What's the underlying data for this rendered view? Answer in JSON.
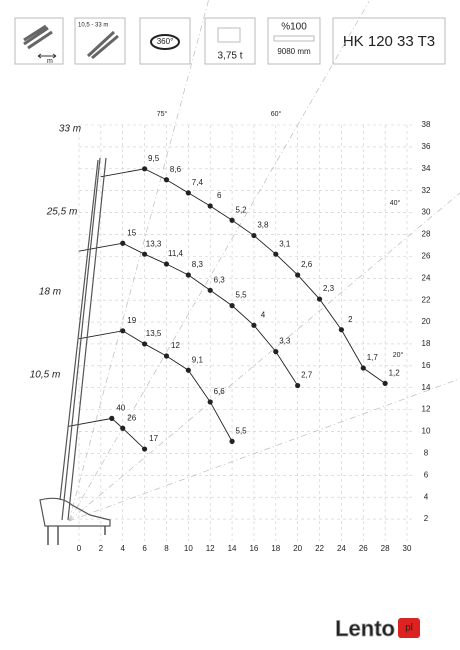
{
  "header": {
    "icons": [
      "m",
      "10,5 - 33 m",
      "360°",
      "3,75 t",
      "%100",
      "9080 mm"
    ],
    "model": "HK 120 33 T3"
  },
  "chart_data": {
    "type": "load-chart",
    "xlim": [
      0,
      30
    ],
    "xticks": [
      0,
      2,
      4,
      6,
      8,
      10,
      12,
      14,
      16,
      18,
      20,
      22,
      24,
      26,
      28,
      30
    ],
    "ylim": [
      0,
      38
    ],
    "yticks": [
      2,
      4,
      6,
      8,
      10,
      12,
      14,
      16,
      18,
      20,
      22,
      24,
      26,
      28,
      30,
      32,
      34,
      36,
      38
    ],
    "grid": true,
    "angle_labels": [
      "75°",
      "60°",
      "40°",
      "20°"
    ],
    "series": [
      {
        "name": "33 m",
        "color": "#222",
        "x": [
          6,
          8,
          10,
          12,
          14,
          16,
          18,
          20,
          22,
          24,
          26,
          28
        ],
        "y": [
          34,
          33,
          31.8,
          30.6,
          29.3,
          27.9,
          26.2,
          24.3,
          22.1,
          19.3,
          15.8,
          14.4
        ],
        "point_labels": [
          "9,5",
          "8,6",
          "7,4",
          "6",
          "5,2",
          "3,8",
          "3,1",
          "2,6",
          "2,3",
          "2",
          "1,7",
          "1,2"
        ]
      },
      {
        "name": "25,5 m",
        "color": "#222",
        "x": [
          4,
          6,
          8,
          10,
          12,
          14,
          16,
          18,
          20
        ],
        "y": [
          27.2,
          26.2,
          25.3,
          24.3,
          22.9,
          21.5,
          19.7,
          17.3,
          14.2
        ],
        "point_labels": [
          "15",
          "13,3",
          "11,4",
          "8,3",
          "6,3",
          "5,5",
          "4",
          "3,3",
          "2,7"
        ]
      },
      {
        "name": "18 m",
        "color": "#222",
        "x": [
          4,
          6,
          8,
          10,
          12,
          14
        ],
        "y": [
          19.2,
          18,
          16.9,
          15.6,
          12.7,
          9.1
        ],
        "point_labels": [
          "19",
          "13,5",
          "12",
          "9,1",
          "6,6",
          "5,5"
        ]
      },
      {
        "name": "10,5 m",
        "color": "#222",
        "x": [
          3,
          4,
          6
        ],
        "y": [
          11.2,
          10.3,
          8.4
        ],
        "point_labels": [
          "40",
          "26",
          "17"
        ]
      }
    ]
  },
  "watermark": {
    "text": "Lento",
    "badge": "pl"
  }
}
